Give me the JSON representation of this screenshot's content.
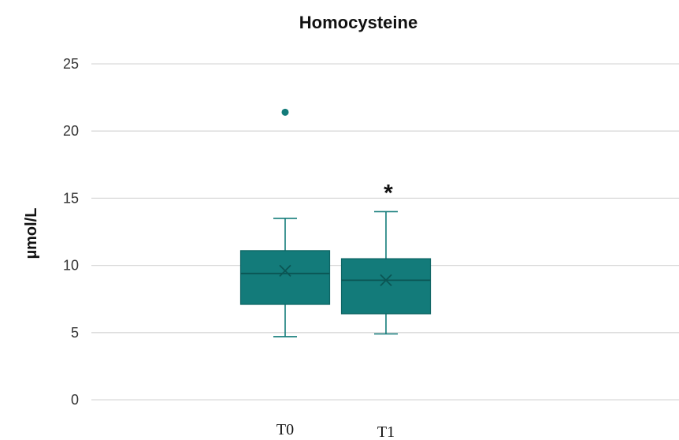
{
  "chart_data": {
    "type": "box",
    "title": "Homocysteine",
    "xlabel": "",
    "ylabel": "µmol/L",
    "ylim": [
      0,
      25
    ],
    "yticks": [
      0,
      5,
      10,
      15,
      20,
      25
    ],
    "grid": true,
    "legend": "none",
    "color": "#137b7a",
    "categories": [
      "T0",
      "T1"
    ],
    "boxes": [
      {
        "category": "T0",
        "min": 4.7,
        "q1": 7.1,
        "median": 9.4,
        "q3": 11.1,
        "max": 13.5,
        "mean": 9.6,
        "outliers": [
          21.4
        ],
        "annotation": ""
      },
      {
        "category": "T1",
        "min": 4.9,
        "q1": 6.4,
        "median": 8.9,
        "q3": 10.5,
        "max": 14.0,
        "mean": 8.9,
        "outliers": [],
        "annotation": "*"
      }
    ]
  }
}
